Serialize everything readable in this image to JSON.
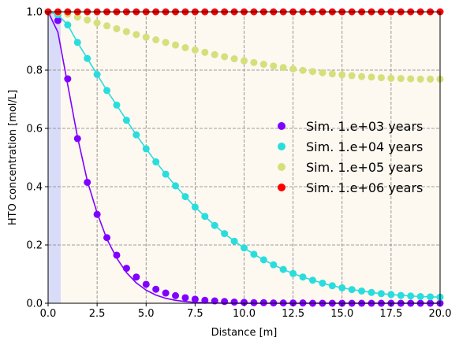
{
  "chart_data": {
    "type": "scatter",
    "xlabel": "Distance [m]",
    "ylabel": "HTO concentration [mol/L]",
    "xlim": [
      0,
      20
    ],
    "ylim": [
      0,
      1
    ],
    "xticks": [
      0,
      2.5,
      5,
      7.5,
      10,
      12.5,
      15,
      17.5,
      20
    ],
    "xtick_labels": [
      "0.0",
      "2.5",
      "5.0",
      "7.5",
      "10.0",
      "12.5",
      "15.0",
      "17.5",
      "20.0"
    ],
    "yticks": [
      0,
      0.2,
      0.4,
      0.6,
      0.8,
      1.0
    ],
    "ytick_labels": [
      "0.0",
      "0.2",
      "0.4",
      "0.6",
      "0.8",
      "1.0"
    ],
    "grid": true,
    "grid_style": "dashed",
    "legend_position": "center-right",
    "shaded_regions": [
      {
        "x": [
          0,
          0.65
        ],
        "color": "#d8dcf8"
      },
      {
        "x": [
          0.65,
          20
        ],
        "color": "#fdf8f0"
      }
    ],
    "series": [
      {
        "name": "Sim. 1.e+03 years",
        "color": "#7f00ff",
        "x": [
          0.5,
          1.0,
          1.5,
          2.0,
          2.5,
          3.0,
          3.5,
          4.0,
          4.5,
          5.0,
          5.5,
          6.0,
          6.5,
          7.0,
          7.5,
          8.0,
          8.5,
          9.0,
          9.5,
          10.0,
          10.5,
          11.0,
          11.5,
          12.0,
          12.5,
          13.0,
          13.5,
          14.0,
          14.5,
          15.0,
          15.5,
          16.0,
          16.5,
          17.0,
          17.5,
          18.0,
          18.5,
          19.0,
          19.5,
          20.0
        ],
        "y": [
          0.97,
          0.77,
          0.565,
          0.415,
          0.305,
          0.225,
          0.165,
          0.12,
          0.09,
          0.065,
          0.048,
          0.035,
          0.026,
          0.019,
          0.014,
          0.01,
          0.008,
          0.006,
          0.004,
          0.003,
          0.002,
          0.002,
          0.001,
          0.001,
          0.001,
          0.001,
          0.0,
          0.0,
          0.0,
          0.0,
          0.0,
          0.0,
          0.0,
          0.0,
          0.0,
          0.0,
          0.0,
          0.0,
          0.0,
          0.0
        ],
        "curve_x": [
          0,
          0.5,
          1.0,
          1.5,
          2.0,
          2.5,
          3.0,
          3.5,
          4.0,
          4.5,
          5.0,
          5.5,
          6.0,
          6.5,
          7.0,
          7.5,
          8.0,
          8.5,
          9.0,
          10.0,
          11.0,
          12.0,
          14.0,
          16.0,
          18.0,
          20.0
        ],
        "curve_y": [
          1.0,
          0.93,
          0.75,
          0.57,
          0.42,
          0.31,
          0.22,
          0.155,
          0.105,
          0.07,
          0.045,
          0.028,
          0.017,
          0.01,
          0.006,
          0.003,
          0.002,
          0.001,
          0.0005,
          0.0001,
          0.0,
          0.0,
          0.0,
          0.0,
          0.0,
          0.0
        ]
      },
      {
        "name": "Sim. 1.e+04 years",
        "color": "#2adddd",
        "x": [
          0.5,
          1.0,
          1.5,
          2.0,
          2.5,
          3.0,
          3.5,
          4.0,
          4.5,
          5.0,
          5.5,
          6.0,
          6.5,
          7.0,
          7.5,
          8.0,
          8.5,
          9.0,
          9.5,
          10.0,
          10.5,
          11.0,
          11.5,
          12.0,
          12.5,
          13.0,
          13.5,
          14.0,
          14.5,
          15.0,
          15.5,
          16.0,
          16.5,
          17.0,
          17.5,
          18.0,
          18.5,
          19.0,
          19.5,
          20.0
        ],
        "y": [
          0.99,
          0.955,
          0.895,
          0.84,
          0.785,
          0.73,
          0.68,
          0.628,
          0.578,
          0.53,
          0.485,
          0.443,
          0.403,
          0.366,
          0.33,
          0.298,
          0.267,
          0.239,
          0.213,
          0.19,
          0.168,
          0.149,
          0.132,
          0.116,
          0.102,
          0.09,
          0.079,
          0.069,
          0.06,
          0.053,
          0.047,
          0.042,
          0.037,
          0.033,
          0.03,
          0.027,
          0.025,
          0.023,
          0.022,
          0.021
        ],
        "curve_x": [
          0,
          0.5,
          1.0,
          1.5,
          2.0,
          2.5,
          3.0,
          3.5,
          4.0,
          4.5,
          5.0,
          5.5,
          6.0,
          6.5,
          7.0,
          7.5,
          8.0,
          8.5,
          9.0,
          9.5,
          10.0,
          10.5,
          11.0,
          11.5,
          12.0,
          12.5,
          13.0,
          13.5,
          14.0,
          14.5,
          15.0,
          15.5,
          16.0,
          16.5,
          17.0,
          17.5,
          18.0,
          18.5,
          19.0,
          19.5,
          20.0
        ],
        "curve_y": [
          1.0,
          0.99,
          0.955,
          0.895,
          0.84,
          0.785,
          0.73,
          0.68,
          0.628,
          0.578,
          0.53,
          0.485,
          0.443,
          0.403,
          0.366,
          0.33,
          0.298,
          0.267,
          0.239,
          0.213,
          0.19,
          0.168,
          0.149,
          0.132,
          0.116,
          0.102,
          0.09,
          0.079,
          0.069,
          0.06,
          0.053,
          0.047,
          0.042,
          0.037,
          0.033,
          0.03,
          0.027,
          0.025,
          0.023,
          0.022,
          0.021
        ]
      },
      {
        "name": "Sim. 1.e+05 years",
        "color": "#d4e07a",
        "x": [
          0.0,
          0.5,
          1.0,
          1.5,
          2.0,
          2.5,
          3.0,
          3.5,
          4.0,
          4.5,
          5.0,
          5.5,
          6.0,
          6.5,
          7.0,
          7.5,
          8.0,
          8.5,
          9.0,
          9.5,
          10.0,
          10.5,
          11.0,
          11.5,
          12.0,
          12.5,
          13.0,
          13.5,
          14.0,
          14.5,
          15.0,
          15.5,
          16.0,
          16.5,
          17.0,
          17.5,
          18.0,
          18.5,
          19.0,
          19.5,
          20.0
        ],
        "y": [
          1.0,
          0.998,
          0.992,
          0.982,
          0.972,
          0.962,
          0.952,
          0.942,
          0.932,
          0.922,
          0.913,
          0.904,
          0.895,
          0.886,
          0.877,
          0.869,
          0.861,
          0.853,
          0.846,
          0.839,
          0.832,
          0.826,
          0.82,
          0.814,
          0.809,
          0.804,
          0.799,
          0.795,
          0.791,
          0.787,
          0.784,
          0.781,
          0.778,
          0.776,
          0.774,
          0.772,
          0.771,
          0.77,
          0.769,
          0.769,
          0.769
        ]
      },
      {
        "name": "Sim. 1.e+06 years",
        "color": "#ff0000",
        "x": [
          0.0,
          0.5,
          1.0,
          1.5,
          2.0,
          2.5,
          3.0,
          3.5,
          4.0,
          4.5,
          5.0,
          5.5,
          6.0,
          6.5,
          7.0,
          7.5,
          8.0,
          8.5,
          9.0,
          9.5,
          10.0,
          10.5,
          11.0,
          11.5,
          12.0,
          12.5,
          13.0,
          13.5,
          14.0,
          14.5,
          15.0,
          15.5,
          16.0,
          16.5,
          17.0,
          17.5,
          18.0,
          18.5,
          19.0,
          19.5,
          20.0
        ],
        "y": [
          1.0,
          1.0,
          1.0,
          1.0,
          1.0,
          1.0,
          1.0,
          1.0,
          1.0,
          1.0,
          1.0,
          1.0,
          1.0,
          1.0,
          1.0,
          1.0,
          1.0,
          1.0,
          1.0,
          1.0,
          1.0,
          1.0,
          1.0,
          1.0,
          1.0,
          1.0,
          1.0,
          1.0,
          1.0,
          1.0,
          1.0,
          1.0,
          1.0,
          1.0,
          1.0,
          1.0,
          1.0,
          1.0,
          1.0,
          1.0,
          1.0
        ]
      }
    ]
  }
}
